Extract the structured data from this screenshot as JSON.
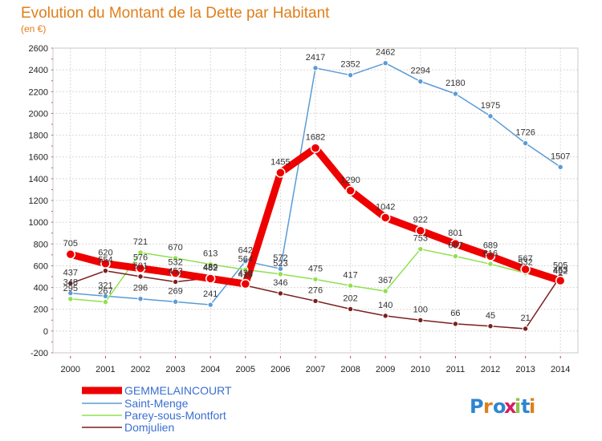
{
  "chart_data": {
    "type": "line",
    "title": "Evolution du Montant de la Dette par Habitant",
    "subtitle": "(en €)",
    "x": [
      "2000",
      "2001",
      "2002",
      "2003",
      "2004",
      "2005",
      "2006",
      "2007",
      "2008",
      "2009",
      "2010",
      "2011",
      "2012",
      "2013",
      "2014"
    ],
    "ylim": [
      -200,
      2600
    ],
    "yticks": [
      "-200",
      "0",
      "200",
      "400",
      "600",
      "800",
      "1000",
      "1200",
      "1400",
      "1600",
      "1800",
      "2000",
      "2200",
      "2400",
      "2600"
    ],
    "grid": true,
    "legend_position": "bottom-left",
    "series": [
      {
        "name": "GEMMELAINCOURT",
        "color": "#ee0000",
        "values": [
          705,
          620,
          576,
          532,
          482,
          433,
          1455,
          1682,
          1290,
          1042,
          922,
          801,
          689,
          567,
          463
        ]
      },
      {
        "name": "Saint-Menge",
        "color": "#5b9bd5",
        "values": [
          348,
          321,
          296,
          269,
          241,
          642,
          572,
          2417,
          2352,
          2462,
          2294,
          2180,
          1975,
          1726,
          1507
        ]
      },
      {
        "name": "Parey-sous-Montfort",
        "color": "#90e050",
        "values": [
          295,
          267,
          721,
          670,
          613,
          564,
          523,
          475,
          417,
          367,
          753,
          687,
          616,
          532,
          452
        ]
      },
      {
        "name": "Domjulien",
        "color": "#7a1f1f",
        "values": [
          437,
          554,
          501,
          452,
          489,
          419,
          346,
          276,
          202,
          140,
          100,
          66,
          45,
          21,
          505
        ]
      }
    ]
  },
  "logo": {
    "text": "Proxiti"
  }
}
